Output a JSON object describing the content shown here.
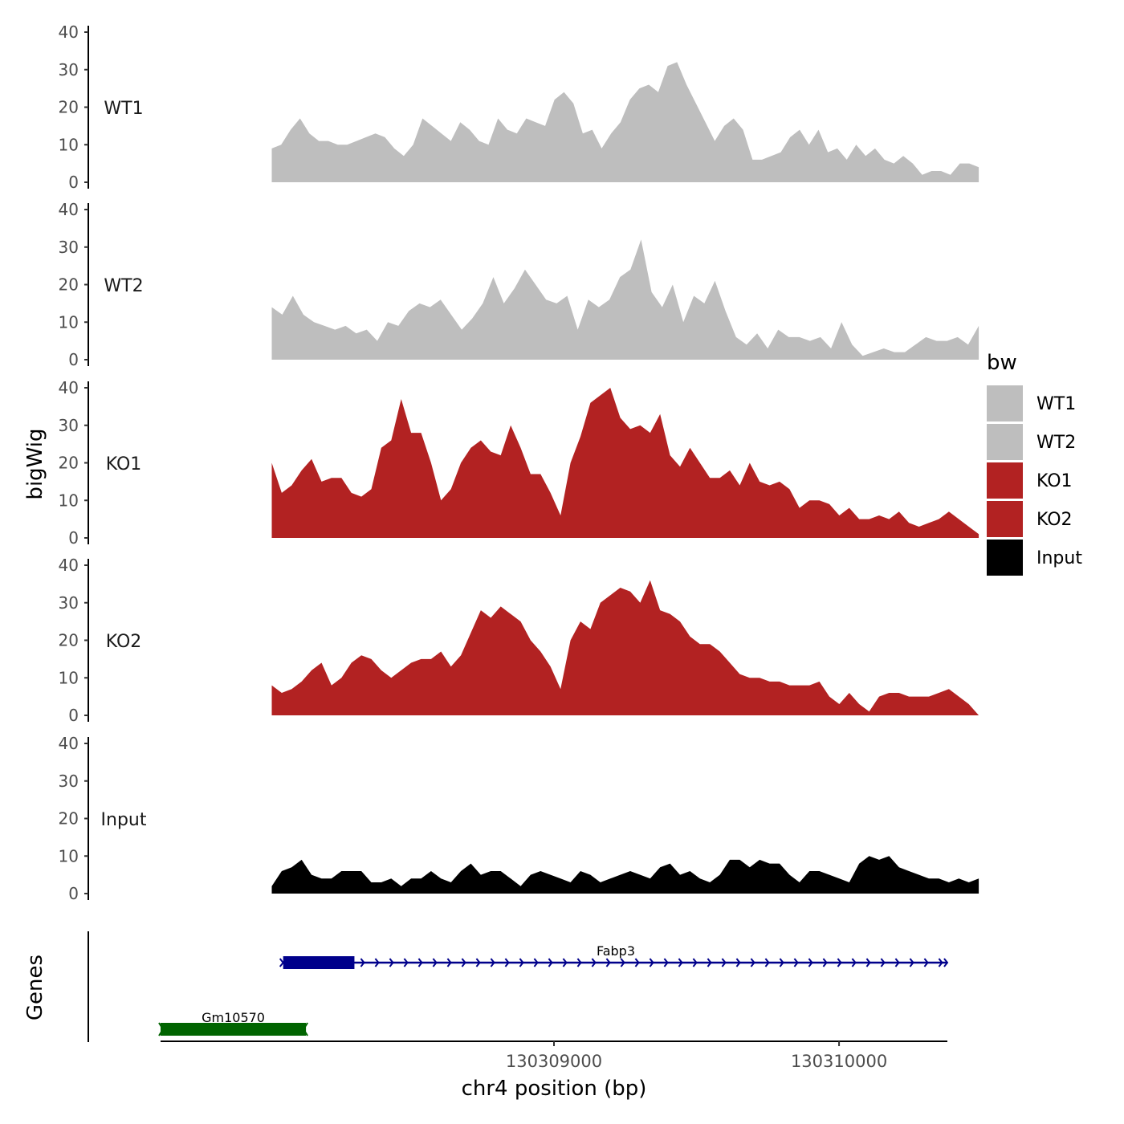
{
  "chart_data": {
    "type": "area",
    "title": "",
    "xlabel": "chr4 position (bp)",
    "ylabel": "bigWig",
    "genes_label": "Genes",
    "x_ticks": [
      130309000,
      130310000
    ],
    "x_tick_labels": [
      "130309000",
      "130310000"
    ],
    "xlim": [
      130307620,
      130310380
    ],
    "track_x_range": [
      130308010,
      130310490
    ],
    "ylim": [
      0,
      40
    ],
    "y_ticks": [
      0,
      10,
      20,
      30,
      40
    ],
    "legend": {
      "title": "bw",
      "position": "right",
      "entries": [
        {
          "label": "WT1",
          "color": "#bebebe"
        },
        {
          "label": "WT2",
          "color": "#bebebe"
        },
        {
          "label": "KO1",
          "color": "#b22222"
        },
        {
          "label": "KO2",
          "color": "#b22222"
        },
        {
          "label": "Input",
          "color": "#000000"
        }
      ]
    },
    "series": [
      {
        "name": "WT1",
        "color": "#bebebe",
        "values": [
          9,
          10,
          14,
          17,
          13,
          11,
          11,
          10,
          10,
          11,
          12,
          13,
          12,
          9,
          7,
          10,
          17,
          15,
          13,
          11,
          16,
          14,
          11,
          10,
          17,
          14,
          13,
          17,
          16,
          15,
          22,
          24,
          21,
          13,
          14,
          9,
          13,
          16,
          22,
          25,
          26,
          24,
          31,
          32,
          26,
          21,
          16,
          11,
          15,
          17,
          14,
          6,
          6,
          7,
          8,
          12,
          14,
          10,
          14,
          8,
          9,
          6,
          10,
          7,
          9,
          6,
          5,
          7,
          5,
          2,
          3,
          3,
          2,
          5,
          5,
          4
        ]
      },
      {
        "name": "WT2",
        "color": "#bebebe",
        "values": [
          14,
          12,
          17,
          12,
          10,
          9,
          8,
          9,
          7,
          8,
          5,
          10,
          9,
          13,
          15,
          14,
          16,
          12,
          8,
          11,
          15,
          22,
          15,
          19,
          24,
          20,
          16,
          15,
          17,
          8,
          16,
          14,
          16,
          22,
          24,
          32,
          18,
          14,
          20,
          10,
          17,
          15,
          21,
          13,
          6,
          4,
          7,
          3,
          8,
          6,
          6,
          5,
          6,
          3,
          10,
          4,
          1,
          2,
          3,
          2,
          2,
          4,
          6,
          5,
          5,
          6,
          4,
          9
        ]
      },
      {
        "name": "KO1",
        "color": "#b22222",
        "values": [
          20,
          12,
          14,
          18,
          21,
          15,
          16,
          16,
          12,
          11,
          13,
          24,
          26,
          37,
          28,
          28,
          20,
          10,
          13,
          20,
          24,
          26,
          23,
          22,
          30,
          24,
          17,
          17,
          12,
          6,
          20,
          27,
          36,
          38,
          40,
          32,
          29,
          30,
          28,
          33,
          22,
          19,
          24,
          20,
          16,
          16,
          18,
          14,
          20,
          15,
          14,
          15,
          13,
          8,
          10,
          10,
          9,
          6,
          8,
          5,
          5,
          6,
          5,
          7,
          4,
          3,
          4,
          5,
          7,
          5,
          3,
          1
        ]
      },
      {
        "name": "KO2",
        "color": "#b22222",
        "values": [
          8,
          6,
          7,
          9,
          12,
          14,
          8,
          10,
          14,
          16,
          15,
          12,
          10,
          12,
          14,
          15,
          15,
          17,
          13,
          16,
          22,
          28,
          26,
          29,
          27,
          25,
          20,
          17,
          13,
          7,
          20,
          25,
          23,
          30,
          32,
          34,
          33,
          30,
          36,
          28,
          27,
          25,
          21,
          19,
          19,
          17,
          14,
          11,
          10,
          10,
          9,
          9,
          8,
          8,
          8,
          9,
          5,
          3,
          6,
          3,
          1,
          5,
          6,
          6,
          5,
          5,
          5,
          6,
          7,
          5,
          3,
          0
        ]
      },
      {
        "name": "Input",
        "color": "#000000",
        "values": [
          2,
          6,
          7,
          9,
          5,
          4,
          4,
          6,
          6,
          6,
          3,
          3,
          4,
          2,
          4,
          4,
          6,
          4,
          3,
          6,
          8,
          5,
          6,
          6,
          4,
          2,
          5,
          6,
          5,
          4,
          3,
          6,
          5,
          3,
          4,
          5,
          6,
          5,
          4,
          7,
          8,
          5,
          6,
          4,
          3,
          5,
          9,
          9,
          7,
          9,
          8,
          8,
          5,
          3,
          6,
          6,
          5,
          4,
          3,
          8,
          10,
          9,
          10,
          7,
          6,
          5,
          4,
          4,
          3,
          4,
          3,
          4
        ]
      }
    ],
    "genes": [
      {
        "name": "Gm10570",
        "start": 130307620,
        "end": 130308130,
        "color": "#006400",
        "strand": "none"
      },
      {
        "name": "Fabp3",
        "start": 130308050,
        "end": 130310380,
        "thick_start": 130308050,
        "thick_end": 130308300,
        "color": "#00008b",
        "strand": "+"
      }
    ]
  }
}
